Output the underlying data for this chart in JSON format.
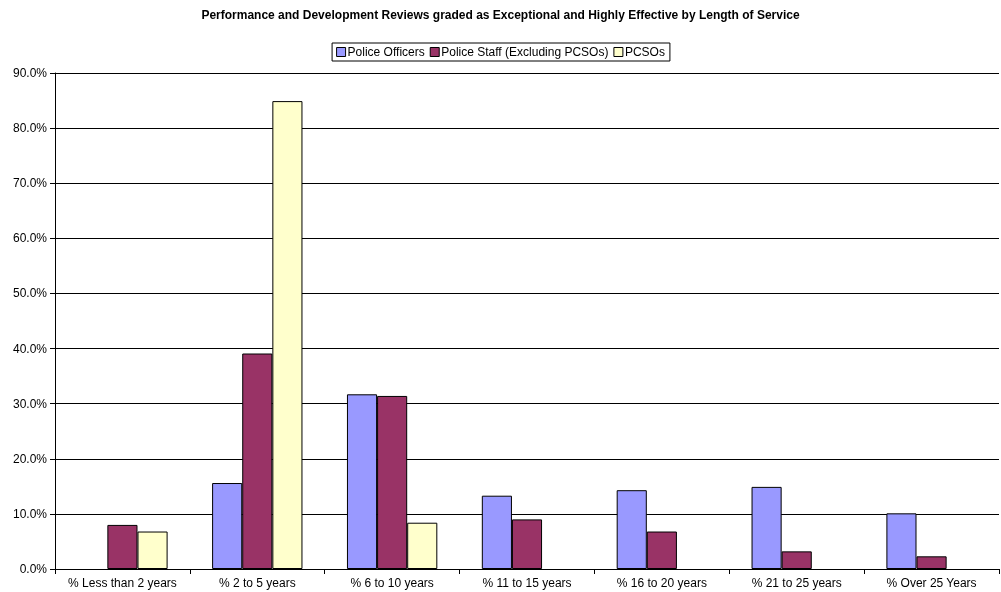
{
  "chart_data": {
    "type": "bar",
    "title": "Performance and Development Reviews graded as Exceptional and Highly Effective by Length of Service",
    "categories": [
      "% Less than 2 years",
      "% 2 to 5 years",
      "% 6 to 10 years",
      "% 11 to 15 years",
      "% 16 to 20 years",
      "% 21 to 25 years",
      "% Over 25 Years"
    ],
    "series": [
      {
        "name": "Police Officers",
        "color": "#9999ff",
        "values": [
          null,
          15.6,
          31.7,
          13.3,
          14.3,
          14.9,
          10.1
        ]
      },
      {
        "name": "Police Staff (Excluding PCSOs)",
        "color": "#993366",
        "values": [
          8.0,
          39.1,
          31.4,
          9.0,
          6.8,
          3.2,
          2.3
        ]
      },
      {
        "name": "PCSOs",
        "color": "#ffffcc",
        "values": [
          6.8,
          84.9,
          8.4,
          null,
          null,
          null,
          null
        ]
      }
    ],
    "ylim": [
      0,
      90
    ],
    "yticks": [
      {
        "value": 0,
        "label": "0.0%"
      },
      {
        "value": 10,
        "label": "10.0%"
      },
      {
        "value": 20,
        "label": "20.0%"
      },
      {
        "value": 30,
        "label": "30.0%"
      },
      {
        "value": 40,
        "label": "40.0%"
      },
      {
        "value": 50,
        "label": "50.0%"
      },
      {
        "value": 60,
        "label": "60.0%"
      },
      {
        "value": 70,
        "label": "70.0%"
      },
      {
        "value": 80,
        "label": "80.0%"
      },
      {
        "value": 90,
        "label": "90.0%"
      }
    ],
    "grid": "y",
    "legend": "top"
  }
}
